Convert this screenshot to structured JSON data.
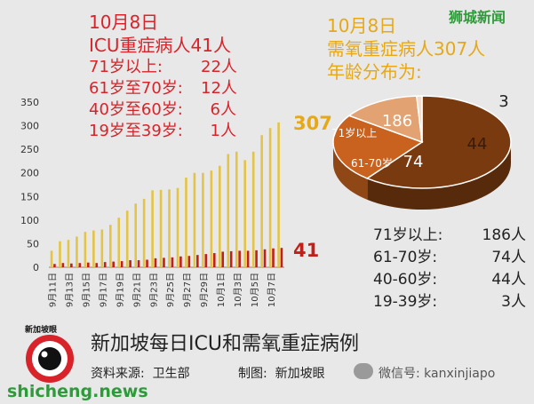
{
  "brand": "狮城新闻",
  "icu_panel": {
    "date": "10月8日",
    "title": "ICU重症病人41人",
    "rows": [
      {
        "age": "71岁以上:",
        "count": "22人"
      },
      {
        "age": "61岁至70岁:",
        "count": "12人"
      },
      {
        "age": "40岁至60岁:",
        "count": "6人"
      },
      {
        "age": "19岁至39岁:",
        "count": "1人"
      }
    ]
  },
  "oxygen_panel": {
    "date": "10月8日",
    "title": "需氧重症病人307人",
    "subtitle": "年龄分布为:",
    "table": [
      {
        "age": "71岁以上:",
        "count": "186人"
      },
      {
        "age": "61-70岁:",
        "count": "74人"
      },
      {
        "age": "40-60岁:",
        "count": "44人"
      },
      {
        "age": "19-39岁:",
        "count": "3人"
      }
    ]
  },
  "chart_data": [
    {
      "type": "bar",
      "ylim": [
        0,
        350
      ],
      "yticks": [
        "0",
        "50",
        "100",
        "150",
        "200",
        "250",
        "300",
        "350"
      ],
      "x_tick_labels": [
        "9月11日",
        "9月13日",
        "9月15日",
        "9月17日",
        "9月19日",
        "9月21日",
        "9月23日",
        "9月25日",
        "9月27日",
        "9月29日",
        "10月1日",
        "10月3日",
        "10月5日",
        "10月7日"
      ],
      "series": [
        {
          "color": "#e3c447",
          "values": [
            35,
            55,
            58,
            65,
            75,
            78,
            80,
            90,
            105,
            120,
            135,
            145,
            163,
            164,
            165,
            168,
            190,
            200,
            200,
            205,
            215,
            240,
            245,
            227,
            245,
            280,
            295,
            307
          ]
        },
        {
          "color": "#c0201a",
          "values": [
            7,
            9,
            8,
            9,
            10,
            9,
            11,
            12,
            13,
            15,
            15,
            16,
            19,
            20,
            21,
            23,
            24,
            26,
            28,
            30,
            33,
            34,
            35,
            35,
            36,
            38,
            40,
            41
          ]
        }
      ],
      "end_labels": [
        {
          "text": "307",
          "color": "#e6a817"
        },
        {
          "text": "41",
          "color": "#c0201a"
        }
      ]
    },
    {
      "type": "pie",
      "slices": [
        {
          "label": "71岁以上",
          "value": 186,
          "color": "#7a3a10"
        },
        {
          "label": "61-70岁",
          "value": 74,
          "color": "#c8621e"
        },
        {
          "label": "",
          "value": 44,
          "color": "#e3a272"
        },
        {
          "label": "",
          "value": 3,
          "color": "#f4dcc8"
        }
      ]
    }
  ],
  "footer": {
    "title": "新加坡每日ICU和需氧重症病例",
    "source": "资料来源:  卫生部",
    "made_by": "制图:  新加坡眼",
    "logo_text": "新加坡眼",
    "wechat": "微信号: kanxinjiapo",
    "site": "shicheng.news"
  },
  "colors": {
    "red_text": "#d8232a",
    "gold_text": "#e6a817",
    "brand_green": "#2e9b3a",
    "logo_red": "#d8232a"
  }
}
